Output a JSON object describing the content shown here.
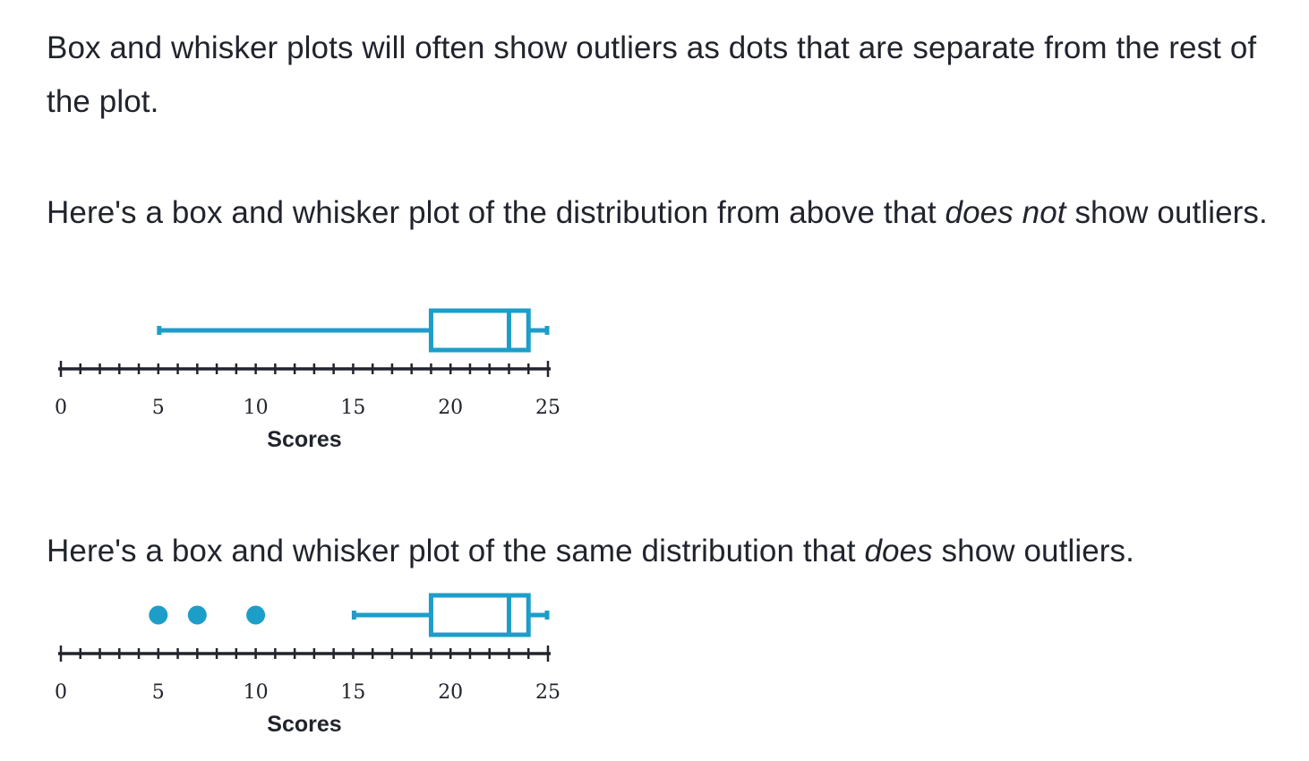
{
  "paragraphs": {
    "p1": {
      "text": "Box and whisker plots will often show outliers as dots that are separate from the rest of the plot."
    },
    "p2": {
      "before": "Here's a box and whisker plot of the distribution from above that ",
      "emphasis": "does not",
      "after": " show outliers."
    },
    "p3": {
      "before": "Here's a box and whisker plot of the same distribution that ",
      "emphasis": "does",
      "after": " show outliers."
    }
  },
  "colors": {
    "plot": "#1c9ec9",
    "axis": "#21242c",
    "text": "#21242c"
  },
  "chart_data": [
    {
      "type": "box",
      "xlabel": "Scores",
      "xlim": [
        0,
        25
      ],
      "major_ticks": [
        0,
        5,
        10,
        15,
        20,
        25
      ],
      "minor_tick_step": 1,
      "whisker_low": 5,
      "q1": 19,
      "median": 23,
      "q3": 24,
      "whisker_high": 25,
      "outliers": []
    },
    {
      "type": "box",
      "xlabel": "Scores",
      "xlim": [
        0,
        25
      ],
      "major_ticks": [
        0,
        5,
        10,
        15,
        20,
        25
      ],
      "minor_tick_step": 1,
      "whisker_low": 15,
      "q1": 19,
      "median": 23,
      "q3": 24,
      "whisker_high": 25,
      "outliers": [
        5,
        7,
        10
      ]
    }
  ]
}
